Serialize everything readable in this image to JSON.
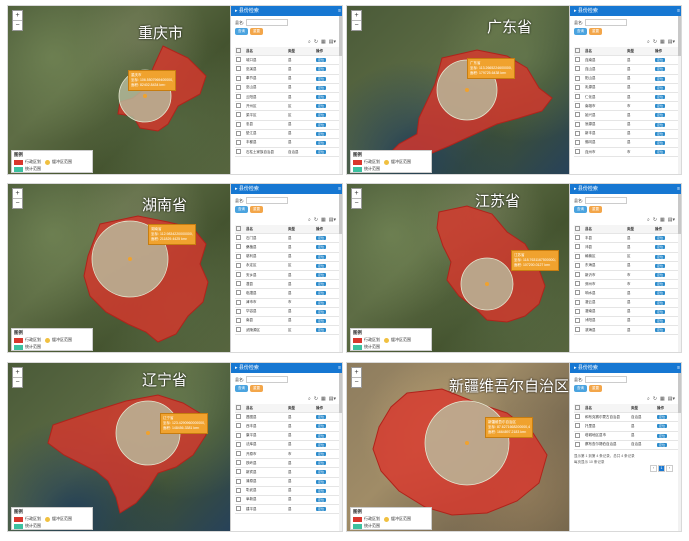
{
  "panels": [
    {
      "region": "重庆市",
      "window_title": "县份检索",
      "popup": [
        "重庆市",
        "坐标: 106.5507969400000,29.5630400",
        "面积: 82402.8434 km²"
      ],
      "legend": {
        "title": "图例",
        "items": [
          "行政区划",
          "缓冲区范围",
          "统计范围"
        ]
      },
      "search_label": "县名:",
      "buttons": [
        "查询",
        "重置"
      ],
      "columns": [
        "县名",
        "类型",
        "操作"
      ],
      "rows": [
        [
          "城口县",
          "县",
          "定位"
        ],
        [
          "巫溪县",
          "县",
          "定位"
        ],
        [
          "奉节县",
          "县",
          "定位"
        ],
        [
          "巫山县",
          "县",
          "定位"
        ],
        [
          "云阳县",
          "县",
          "定位"
        ],
        [
          "开州区",
          "区",
          "定位"
        ],
        [
          "梁平区",
          "区",
          "定位"
        ],
        [
          "忠县",
          "县",
          "定位"
        ],
        [
          "垫江县",
          "县",
          "定位"
        ],
        [
          "丰都县",
          "县",
          "定位"
        ],
        [
          "石柱土家族自治县",
          "自治县",
          "定位"
        ]
      ]
    },
    {
      "region": "广东省",
      "window_title": "县份检索",
      "popup": [
        "广东省",
        "坐标: 113.2665224600000,23.1321",
        "面积: 179725.6438 km²"
      ],
      "legend": {
        "title": "图例",
        "items": [
          "行政区划",
          "缓冲区范围",
          "统计范围"
        ]
      },
      "search_label": "县名:",
      "buttons": [
        "查询",
        "重置"
      ],
      "columns": [
        "县名",
        "类型",
        "操作"
      ],
      "rows": [
        [
          "连南县",
          "县",
          "定位"
        ],
        [
          "连山县",
          "县",
          "定位"
        ],
        [
          "阳山县",
          "县",
          "定位"
        ],
        [
          "乳源县",
          "县",
          "定位"
        ],
        [
          "仁化县",
          "县",
          "定位"
        ],
        [
          "南雄市",
          "市",
          "定位"
        ],
        [
          "始兴县",
          "县",
          "定位"
        ],
        [
          "翁源县",
          "县",
          "定位"
        ],
        [
          "新丰县",
          "县",
          "定位"
        ],
        [
          "佛冈县",
          "县",
          "定位"
        ],
        [
          "连州市",
          "市",
          "定位"
        ]
      ]
    },
    {
      "region": "湖南省",
      "window_title": "县份检索",
      "popup": [
        "湖南省",
        "坐标: 112.9834220000000,28.1127",
        "面积: 211829.4425 km²"
      ],
      "legend": {
        "title": "图例",
        "items": [
          "行政区划",
          "缓冲区范围",
          "统计范围"
        ]
      },
      "search_label": "县名:",
      "buttons": [
        "查询",
        "重置"
      ],
      "columns": [
        "县名",
        "类型",
        "操作"
      ],
      "rows": [
        [
          "石门县",
          "县",
          "定位"
        ],
        [
          "桑植县",
          "县",
          "定位"
        ],
        [
          "慈利县",
          "县",
          "定位"
        ],
        [
          "永定区",
          "区",
          "定位"
        ],
        [
          "安乡县",
          "县",
          "定位"
        ],
        [
          "澧县",
          "县",
          "定位"
        ],
        [
          "临澧县",
          "县",
          "定位"
        ],
        [
          "津市市",
          "市",
          "定位"
        ],
        [
          "华容县",
          "县",
          "定位"
        ],
        [
          "南县",
          "县",
          "定位"
        ],
        [
          "武陵源区",
          "区",
          "定位"
        ]
      ]
    },
    {
      "region": "江苏省",
      "window_title": "县份检索",
      "popup": [
        "江苏省",
        "坐标: 118.7631167500000,32.0617",
        "面积: 107200.0127 km²"
      ],
      "legend": {
        "title": "图例",
        "items": [
          "行政区划",
          "缓冲区范围",
          "统计范围"
        ]
      },
      "search_label": "县名:",
      "buttons": [
        "查询",
        "重置"
      ],
      "columns": [
        "县名",
        "类型",
        "操作"
      ],
      "rows": [
        [
          "丰县",
          "县",
          "定位"
        ],
        [
          "沛县",
          "县",
          "定位"
        ],
        [
          "赣榆区",
          "区",
          "定位"
        ],
        [
          "东海县",
          "县",
          "定位"
        ],
        [
          "新沂市",
          "市",
          "定位"
        ],
        [
          "邳州市",
          "市",
          "定位"
        ],
        [
          "响水县",
          "县",
          "定位"
        ],
        [
          "灌云县",
          "县",
          "定位"
        ],
        [
          "灌南县",
          "县",
          "定位"
        ],
        [
          "沭阳县",
          "县",
          "定位"
        ],
        [
          "滨海县",
          "县",
          "定位"
        ]
      ]
    },
    {
      "region": "辽宁省",
      "window_title": "县份检索",
      "popup": [
        "辽宁省",
        "坐标: 123.4290960000000,41.8354",
        "面积: 148456.3381 km²"
      ],
      "legend": {
        "title": "图例",
        "items": [
          "行政区划",
          "缓冲区范围",
          "统计范围"
        ]
      },
      "search_label": "县名:",
      "buttons": [
        "查询",
        "重置"
      ],
      "columns": [
        "县名",
        "类型",
        "操作"
      ],
      "rows": [
        [
          "昌图县",
          "县",
          "定位"
        ],
        [
          "西丰县",
          "县",
          "定位"
        ],
        [
          "康平县",
          "县",
          "定位"
        ],
        [
          "法库县",
          "县",
          "定位"
        ],
        [
          "开原市",
          "市",
          "定位"
        ],
        [
          "铁岭县",
          "县",
          "定位"
        ],
        [
          "新宾县",
          "县",
          "定位"
        ],
        [
          "清原县",
          "县",
          "定位"
        ],
        [
          "彰武县",
          "县",
          "定位"
        ],
        [
          "阜新县",
          "县",
          "定位"
        ],
        [
          "建平县",
          "县",
          "定位"
        ]
      ]
    },
    {
      "region": "新疆维吾尔自治区",
      "window_title": "县份检索",
      "popup": [
        "新疆维吾尔自治区",
        "坐标: 87.6271668200000,43.7930",
        "面积: 1664897.2183 km²"
      ],
      "legend": {
        "title": "图例",
        "items": [
          "行政区划",
          "缓冲区范围",
          "统计范围"
        ]
      },
      "search_label": "县名:",
      "buttons": [
        "查询",
        "重置"
      ],
      "columns": [
        "县名",
        "类型",
        "操作"
      ],
      "rows": [
        [
          "和布克赛尔蒙古自治县",
          "自治县",
          "定位"
        ],
        [
          "托里县",
          "县",
          "定位"
        ],
        [
          "塔城地区县市",
          "县",
          "定位"
        ],
        [
          "察布查尔锡伯自治县",
          "自治县",
          "定位"
        ]
      ],
      "pager": {
        "summary": "显示第 1 到第 4 条记录，总共 4 条记录",
        "per_page": "每页显示 10 条记录",
        "pages": [
          "‹",
          "1",
          "›"
        ]
      }
    }
  ],
  "colors": {
    "province_fill": "#d9362c",
    "buffer_fill": "#b9bea0",
    "accent": "#1677d2",
    "popup": "#f0a22e"
  }
}
